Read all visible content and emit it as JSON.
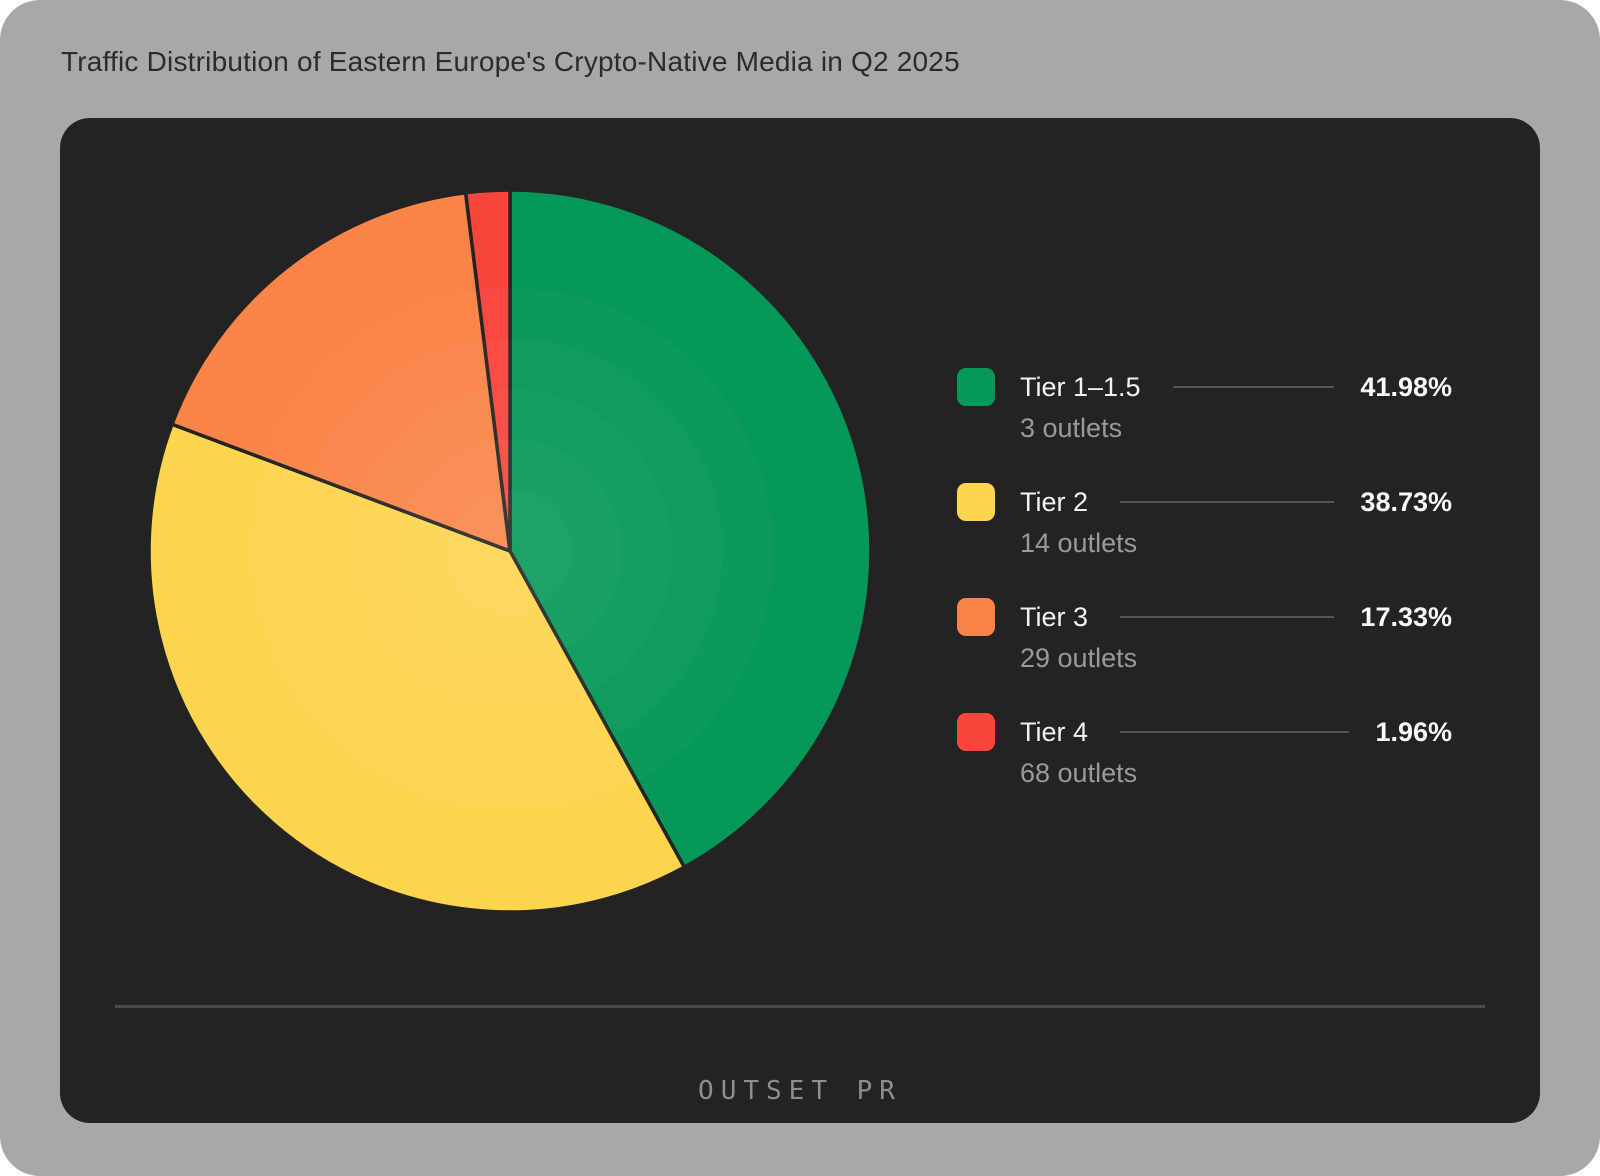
{
  "page": {
    "title": "Traffic Distribution of Eastern Europe's Crypto-Native Media in Q2 2025"
  },
  "footer": {
    "logo": "OUTSET PR"
  },
  "theme": {
    "page_background": "#a8a8a8",
    "card_background": "#232323",
    "title_color": "#2b2b2b",
    "label_color": "#f2f2f2",
    "sublabel_color": "#9a9a9a",
    "connector_color": "#545454",
    "divider_color": "#4a4a4a",
    "logo_color": "#8e8e8e"
  },
  "chart_data": {
    "type": "pie",
    "title": "Traffic Distribution of Eastern Europe's Crypto-Native Media in Q2 2025",
    "start_angle_deg": 0,
    "direction": "clockwise",
    "legend_position": "right",
    "slice_border_color": "#232323",
    "categories": [
      "Tier 1–1.5",
      "Tier 2",
      "Tier 3",
      "Tier 4"
    ],
    "values": [
      41.98,
      38.73,
      17.33,
      1.96
    ],
    "slices": [
      {
        "label": "Tier 1–1.5",
        "sublabel": "3 outlets",
        "value": 41.98,
        "display": "41.98%",
        "color": "#069859"
      },
      {
        "label": "Tier 2",
        "sublabel": "14 outlets",
        "value": 38.73,
        "display": "38.73%",
        "color": "#fdd44e"
      },
      {
        "label": "Tier 3",
        "sublabel": "29 outlets",
        "value": 17.33,
        "display": "17.33%",
        "color": "#fa8448"
      },
      {
        "label": "Tier 4",
        "sublabel": "68 outlets",
        "value": 1.96,
        "display": "1.96%",
        "color": "#f9453c"
      }
    ]
  }
}
